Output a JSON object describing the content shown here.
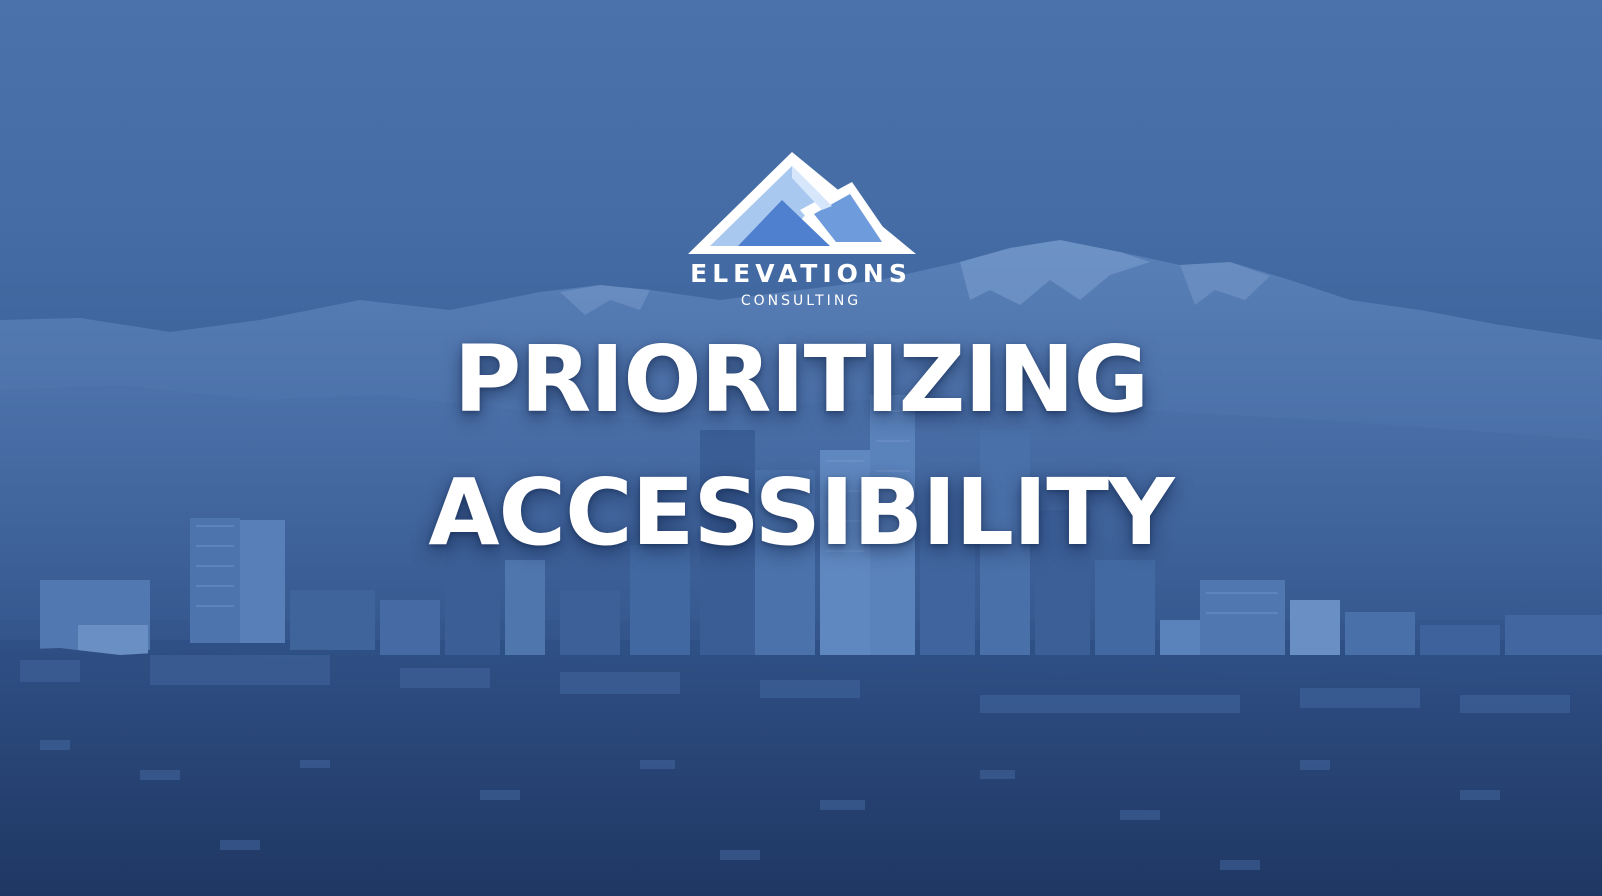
{
  "brand": {
    "name": "ELEVATIONS",
    "tagline": "CONSULTING",
    "logo_icon": "mountain-peaks-icon",
    "colors": {
      "outline": "#ffffff",
      "peak_light": "#a9c8f0",
      "peak_mid": "#6e9bdc",
      "peak_dark": "#4f7fcf"
    }
  },
  "headline": {
    "line1": "PRIORITIZING",
    "line2": "ACCESSIBILITY"
  },
  "background": {
    "tint": "#3f66a0"
  }
}
